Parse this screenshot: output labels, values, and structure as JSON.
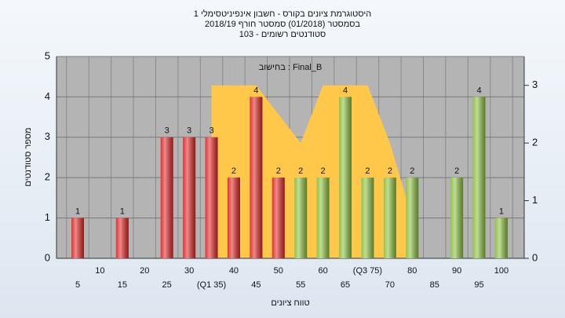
{
  "chart_data": {
    "type": "bar",
    "title_lines": [
      "היסטוגרמת ציונים בקורס - חשבון אינפיניטסימלי 1",
      "בסמסטר  (01/2018)  סמסטר חורף 2018/19",
      "סטודנטים רשומים - 103"
    ],
    "annotation": "Final_B : בחישוב",
    "x_label": "טווח ציונים",
    "y_label": "מספר סטודנטים",
    "categories": [
      "5",
      "10",
      "15",
      "20",
      "25",
      "30",
      "(Q1 35)",
      "40",
      "45",
      "50",
      "55",
      "60",
      "65",
      "(Q3 75)",
      "70",
      "80",
      "85",
      "90",
      "95",
      "100"
    ],
    "series": [
      {
        "values": [
          1,
          0,
          1,
          0,
          3,
          3,
          3,
          2,
          4,
          2,
          2,
          2,
          4,
          2,
          2,
          2,
          0,
          2,
          4,
          1
        ],
        "colors": [
          "#e02828",
          "#e02828",
          "#e02828",
          "#e02828",
          "#e02828",
          "#e02828",
          "#e02828",
          "#e02828",
          "#e02828",
          "#e02828",
          "#8cc040",
          "#8cc040",
          "#8cc040",
          "#8cc040",
          "#8cc040",
          "#8cc040",
          "#8cc040",
          "#8cc040",
          "#8cc040",
          "#8cc040"
        ]
      },
      {
        "axis": "y2",
        "color": "#ffc84a",
        "x": [
          35,
          45,
          55,
          60,
          70,
          75,
          80
        ],
        "values": [
          3,
          3,
          2,
          3,
          3,
          2,
          0.7
        ]
      }
    ],
    "ylim": [
      0,
      5
    ],
    "yticks": [
      0,
      1,
      2,
      3,
      4,
      5
    ],
    "y2lim": [
      0,
      3.5
    ],
    "y2ticks": [
      0,
      1,
      2,
      3
    ],
    "grid": true
  }
}
